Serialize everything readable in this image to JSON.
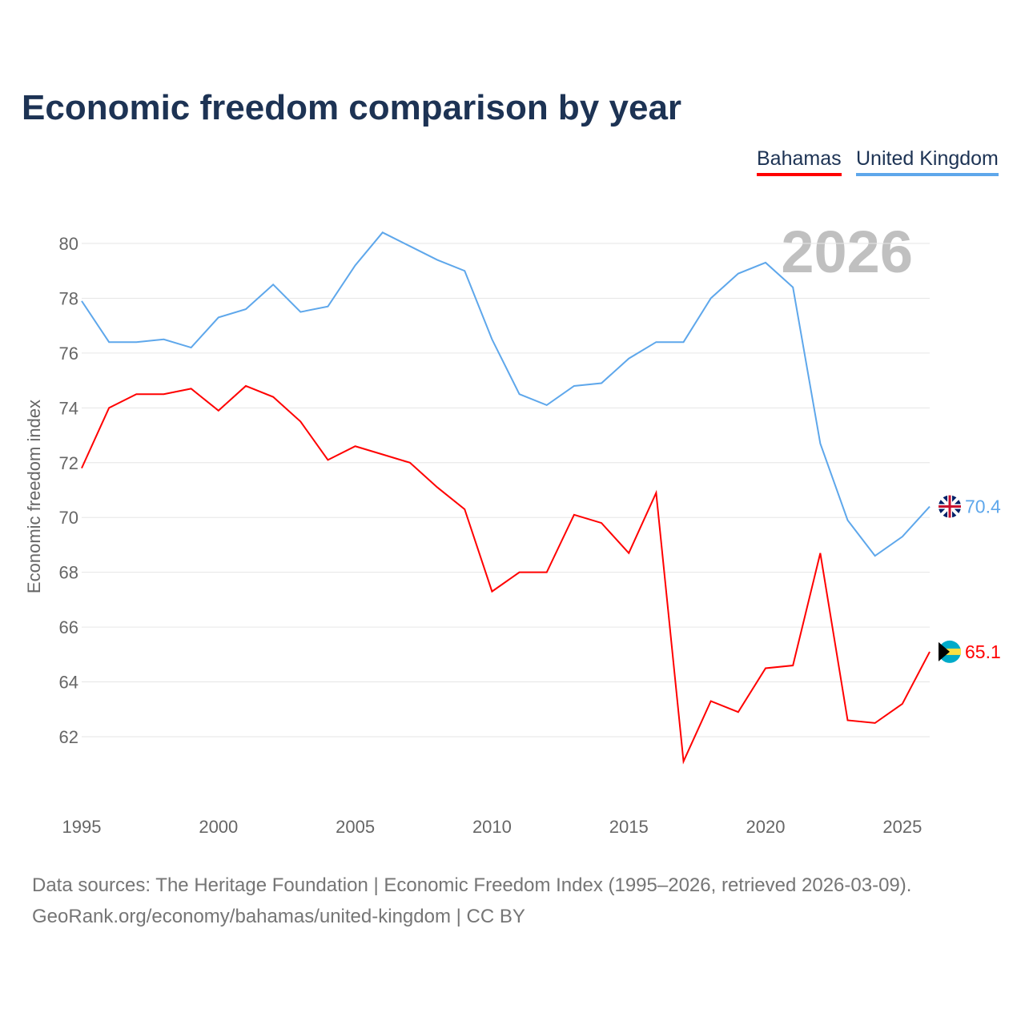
{
  "title": "Economic freedom comparison by year",
  "footer": {
    "line1": "Data sources: The Heritage Foundation | Economic Freedom Index (1995–2026, retrieved 2026-03-09).",
    "line2": "GeoRank.org/economy/bahamas/united-kingdom | CC BY"
  },
  "chart_data": {
    "type": "line",
    "title": "Economic freedom comparison by year",
    "ylabel": "Economic freedom index",
    "xlabel": "",
    "year_watermark": "2026",
    "ylim": [
      60,
      82
    ],
    "xlim": [
      1995,
      2026
    ],
    "yticks": [
      62,
      64,
      66,
      68,
      70,
      72,
      74,
      76,
      78,
      80
    ],
    "xticks": [
      1995,
      2000,
      2005,
      2010,
      2015,
      2020,
      2025
    ],
    "legend_position": "top-right",
    "x": [
      1995,
      1996,
      1997,
      1998,
      1999,
      2000,
      2001,
      2002,
      2003,
      2004,
      2005,
      2006,
      2007,
      2008,
      2009,
      2010,
      2011,
      2012,
      2013,
      2014,
      2015,
      2016,
      2017,
      2018,
      2019,
      2020,
      2021,
      2022,
      2023,
      2024,
      2025,
      2026
    ],
    "series": [
      {
        "name": "Bahamas",
        "color": "#ff0000",
        "end_label": "65.1",
        "values": [
          71.8,
          74.0,
          74.5,
          74.5,
          74.7,
          73.9,
          74.8,
          74.4,
          73.5,
          72.1,
          72.6,
          72.3,
          72.0,
          71.1,
          70.3,
          67.3,
          68.0,
          68.0,
          70.1,
          69.8,
          68.7,
          70.9,
          61.1,
          63.3,
          62.9,
          64.5,
          64.6,
          68.7,
          62.6,
          62.5,
          63.2,
          65.1
        ]
      },
      {
        "name": "United Kingdom",
        "color": "#5ea7eb",
        "end_label": "70.4",
        "values": [
          77.9,
          76.4,
          76.4,
          76.5,
          76.2,
          77.3,
          77.6,
          78.5,
          77.5,
          77.7,
          79.2,
          80.4,
          79.9,
          79.4,
          79.0,
          76.5,
          74.5,
          74.1,
          74.8,
          74.9,
          75.8,
          76.4,
          76.4,
          78.0,
          78.9,
          79.3,
          78.4,
          72.7,
          69.9,
          68.6,
          69.3,
          70.4
        ]
      }
    ]
  }
}
